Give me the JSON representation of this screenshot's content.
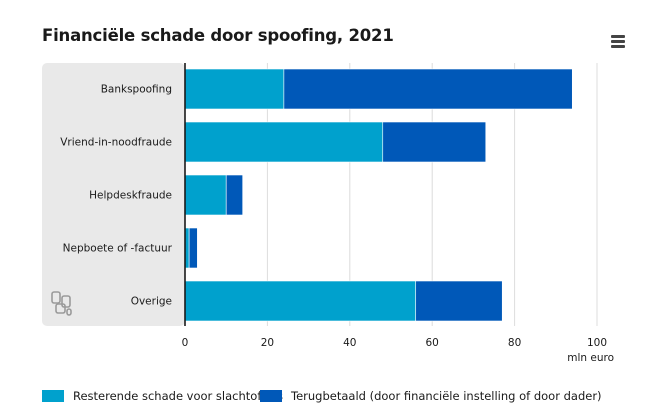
{
  "title": "Financiële schade door spoofing, 2021",
  "colors": {
    "resterend": "#00a1cd",
    "terugbetaald": "#0058b8",
    "panel": "#e9e9e9",
    "grid": "#dcdcdc",
    "axis": "#1a1a1a"
  },
  "chart_data": {
    "type": "bar",
    "orientation": "horizontal",
    "stacked": true,
    "title": "Financiële schade door spoofing, 2021",
    "categories": [
      "Bankspoofing",
      "Vriend-in-noodfraude",
      "Helpdeskfraude",
      "Nepboete of -factuur",
      "Overige"
    ],
    "series": [
      {
        "name": "Resterende schade voor slachtoffers",
        "values": [
          24,
          48,
          10,
          1,
          56
        ]
      },
      {
        "name": "Terugbetaald (door financiële instelling of door dader)",
        "values": [
          70,
          25,
          4,
          2,
          21
        ]
      }
    ],
    "xlabel": "mln euro",
    "xlim": [
      0,
      100
    ],
    "xticks": [
      0,
      20,
      40,
      60,
      80,
      100
    ],
    "grid": true,
    "legend": "bottom"
  },
  "legend": {
    "items": [
      "Resterende schade voor slachtoffers",
      "Terugbetaald (door financiële instelling of door dader)"
    ]
  }
}
